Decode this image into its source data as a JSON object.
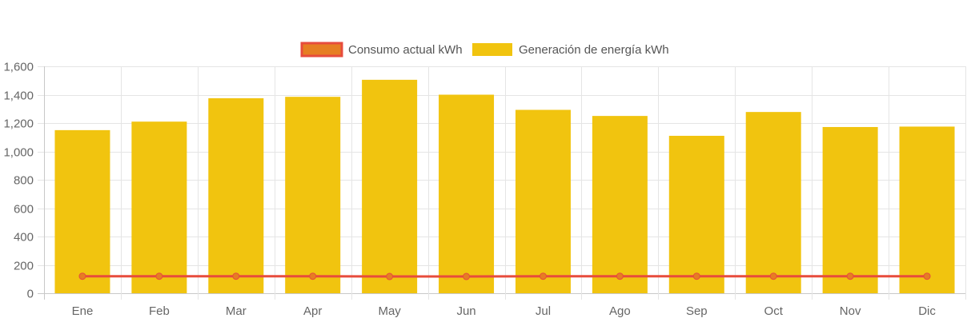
{
  "chart_data": {
    "type": "bar",
    "categories": [
      "Ene",
      "Feb",
      "Mar",
      "Apr",
      "May",
      "Jun",
      "Jul",
      "Ago",
      "Sep",
      "Oct",
      "Nov",
      "Dic"
    ],
    "series": [
      {
        "name": "Generación de energía kWh",
        "type": "bar",
        "color": "#f1c40f",
        "values": [
          1150,
          1210,
          1375,
          1385,
          1505,
          1400,
          1293,
          1250,
          1110,
          1278,
          1172,
          1175
        ]
      },
      {
        "name": "Consumo actual kWh",
        "type": "line",
        "color": "#e74c3c",
        "point_fill": "#e67e22",
        "values": [
          120,
          120,
          120,
          120,
          118,
          118,
          120,
          120,
          120,
          120,
          120,
          120
        ]
      }
    ],
    "ylim": [
      0,
      1600
    ],
    "yticks": [
      "0",
      "200",
      "400",
      "600",
      "800",
      "1,000",
      "1,200",
      "1,400",
      "1,600"
    ],
    "grid": true,
    "legend_position": "top-center",
    "legend_order": [
      "Consumo actual kWh",
      "Generación de energía kWh"
    ]
  }
}
